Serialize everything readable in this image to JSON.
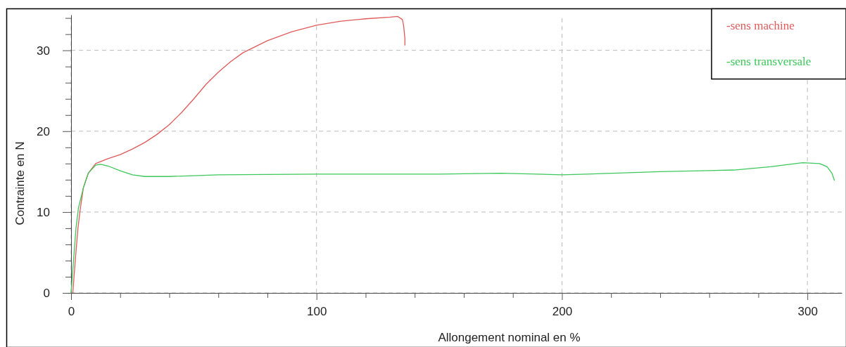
{
  "chart_data": {
    "type": "line",
    "xlabel": "Allongement nominal en %",
    "ylabel": "Contrainte en N",
    "xlim": [
      0,
      314
    ],
    "ylim": [
      0,
      34.4
    ],
    "xticks": [
      0,
      {
        "value": 20,
        "label": null
      },
      {
        "value": 40,
        "label": null
      },
      {
        "value": 60,
        "label": null
      },
      {
        "value": 80,
        "label": null
      },
      100,
      {
        "value": 120,
        "label": null
      },
      {
        "value": 140,
        "label": null
      },
      {
        "value": 160,
        "label": null
      },
      {
        "value": 180,
        "label": null
      },
      200,
      {
        "value": 220,
        "label": null
      },
      {
        "value": 240,
        "label": null
      },
      {
        "value": 260,
        "label": null
      },
      {
        "value": 280,
        "label": null
      },
      300
    ],
    "yticks": [
      0,
      {
        "value": 2,
        "label": null
      },
      {
        "value": 4,
        "label": null
      },
      {
        "value": 6,
        "label": null
      },
      {
        "value": 8,
        "label": null
      },
      10,
      {
        "value": 12,
        "label": null
      },
      {
        "value": 14,
        "label": null
      },
      {
        "value": 16,
        "label": null
      },
      {
        "value": 18,
        "label": null
      },
      20,
      {
        "value": 22,
        "label": null
      },
      {
        "value": 24,
        "label": null
      },
      {
        "value": 26,
        "label": null
      },
      {
        "value": 28,
        "label": null
      },
      30,
      {
        "value": 32,
        "label": null
      },
      {
        "value": 34,
        "label": null
      }
    ],
    "grid": true,
    "legend": "top right",
    "line_style": "solid",
    "marker": "none",
    "series": [
      {
        "name": "-sens machine",
        "color": "#e05a5a",
        "x": [
          0.7,
          1.7,
          2.8,
          3.8,
          5,
          7,
          10,
          15,
          20,
          25,
          30,
          35,
          40,
          45,
          50,
          55,
          60,
          65,
          70,
          80,
          90,
          100,
          110,
          120,
          130,
          133,
          135,
          135.5,
          136,
          136
        ],
        "values": [
          0,
          4,
          8,
          10.5,
          13,
          14.8,
          16,
          16.6,
          17.1,
          17.8,
          18.6,
          19.6,
          20.8,
          22.3,
          24,
          25.8,
          27.3,
          28.6,
          29.7,
          31.2,
          32.3,
          33.1,
          33.6,
          33.9,
          34.1,
          34.2,
          33.8,
          33,
          31.5,
          30.6
        ]
      },
      {
        "name": "-sens transversale",
        "color": "#3cc85a",
        "x": [
          0,
          1,
          2,
          3,
          5,
          7,
          10,
          12,
          15,
          20,
          25,
          30,
          40,
          60,
          100,
          150,
          175,
          190,
          200,
          210,
          240,
          270,
          285,
          298,
          305,
          308,
          310,
          311
        ],
        "values": [
          0,
          4,
          8,
          10.5,
          13,
          14.8,
          15.8,
          15.9,
          15.7,
          15.1,
          14.6,
          14.4,
          14.4,
          14.6,
          14.7,
          14.7,
          14.8,
          14.7,
          14.6,
          14.7,
          15,
          15.2,
          15.6,
          16.1,
          16,
          15.6,
          14.8,
          13.9
        ]
      }
    ]
  }
}
